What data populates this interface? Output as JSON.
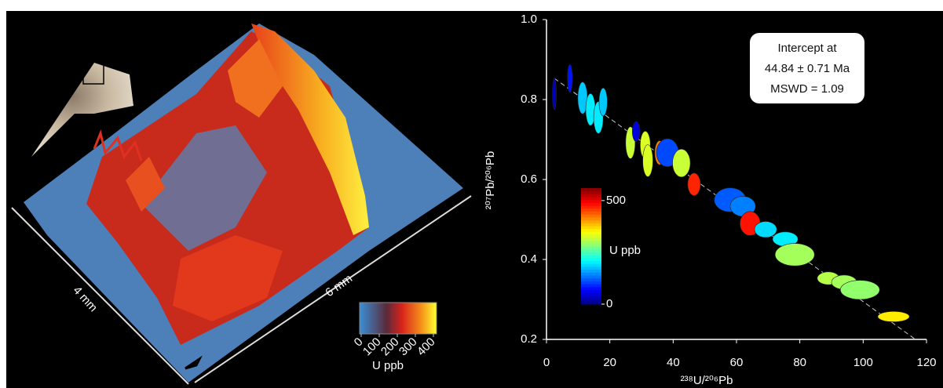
{
  "chart_data": [
    {
      "type": "image",
      "annotations": [
        "4 mm",
        "6 mm"
      ],
      "colorbar": {
        "label": "U ppb",
        "lim": [
          0,
          420
        ],
        "ticks": [
          0,
          100,
          200,
          300,
          400
        ]
      }
    },
    {
      "type": "scatter",
      "xlabel": "²³⁸U/²⁰⁶Pb",
      "ylabel": "²⁰⁷Pb/²⁰⁶Pb",
      "xlim": [
        0,
        120
      ],
      "xticks": [
        0,
        20,
        40,
        60,
        80,
        100,
        120
      ],
      "ylim": [
        0.2,
        1.0
      ],
      "yticks": [
        0.2,
        0.4,
        0.6,
        0.8,
        {
          "value": 1,
          "label": "1.0"
        }
      ],
      "points": {
        "x": [
          2.5,
          7.4,
          11.4,
          13.9,
          16.4,
          17.9,
          26.5,
          28.3,
          31.2,
          32,
          35.7,
          38.2,
          42.6,
          46.6,
          58,
          62,
          64.3,
          69.2,
          75.4,
          78.4,
          89,
          94,
          99,
          109.6
        ],
        "y": [
          0.814,
          0.853,
          0.804,
          0.775,
          0.755,
          0.794,
          0.692,
          0.72,
          0.686,
          0.647,
          0.667,
          0.667,
          0.641,
          0.588,
          0.549,
          0.533,
          0.49,
          0.475,
          0.451,
          0.412,
          0.353,
          0.343,
          0.324,
          0.257
        ],
        "x_err": [
          0.6,
          0.8,
          1.5,
          1.5,
          1.5,
          1.3,
          1.5,
          1.2,
          1.6,
          1.6,
          1.5,
          3.5,
          2.8,
          2,
          5,
          4,
          3.2,
          3.5,
          4,
          6.2,
          3.5,
          4,
          6.2,
          5
        ],
        "y_err": [
          0.04,
          0.035,
          0.04,
          0.04,
          0.04,
          0.035,
          0.04,
          0.025,
          0.035,
          0.04,
          0.03,
          0.035,
          0.035,
          0.028,
          0.03,
          0.025,
          0.03,
          0.02,
          0.018,
          0.028,
          0.016,
          0.018,
          0.024,
          0.013
        ],
        "u": [
          30,
          80,
          180,
          200,
          200,
          180,
          320,
          50,
          330,
          330,
          420,
          110,
          320,
          470,
          120,
          140,
          480,
          190,
          200,
          300,
          310,
          300,
          290,
          360
        ]
      },
      "trend": {
        "x": [
          2.5,
          116.5
        ],
        "y": [
          0.853,
          0.2
        ]
      },
      "annotation": [
        "Intercept at",
        "44.84 ± 0.71 Ma",
        "MSWD = 1.09"
      ],
      "colorbar": {
        "label": "U ppb",
        "lim": [
          0,
          560
        ],
        "ticks": [
          0,
          500
        ]
      }
    }
  ]
}
